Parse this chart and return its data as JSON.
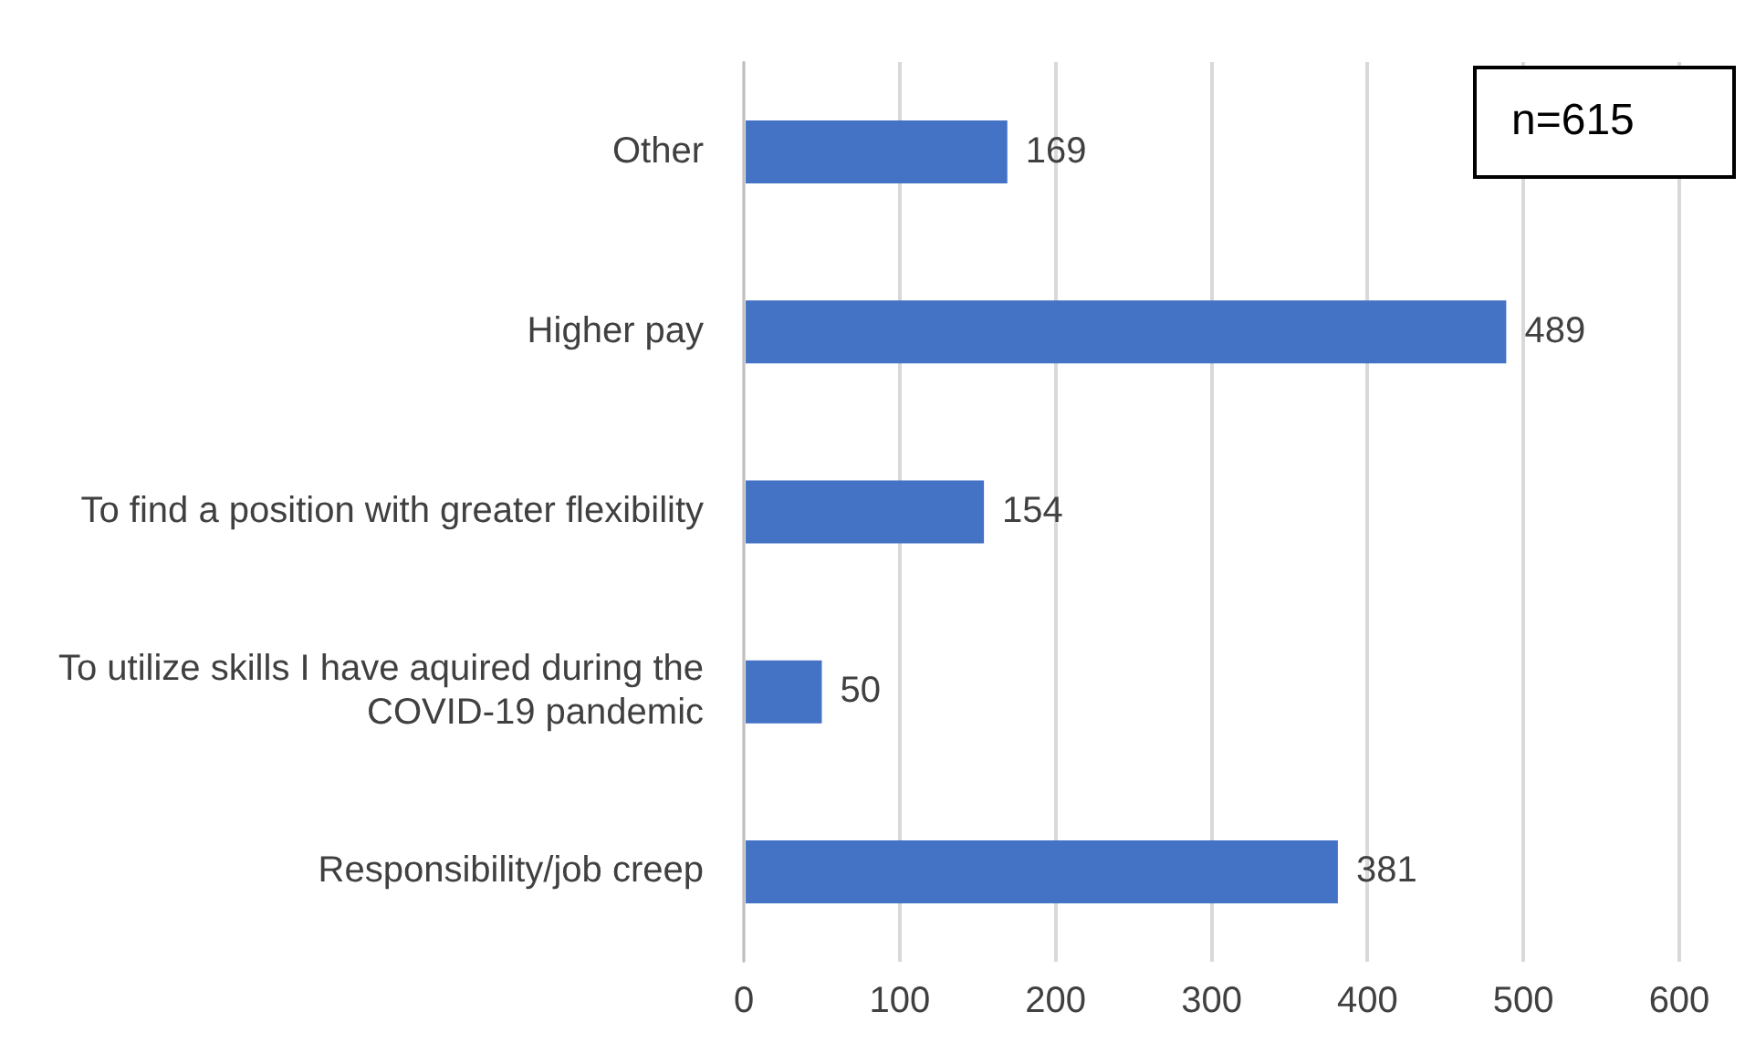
{
  "chart_data": {
    "type": "bar",
    "orientation": "horizontal",
    "categories": [
      "Other",
      "Higher pay",
      "To find a position with greater flexibility",
      "To utilize skills I have aquired during the COVID-19 pandemic",
      "Responsibility/job creep"
    ],
    "values": [
      169,
      489,
      154,
      50,
      381
    ],
    "color": "#4472c4",
    "xlim": [
      0,
      600
    ],
    "xticks": [
      0,
      100,
      200,
      300,
      400,
      500,
      600
    ],
    "grid": "x",
    "data_labels": true,
    "annotations": [
      "n=615"
    ]
  }
}
